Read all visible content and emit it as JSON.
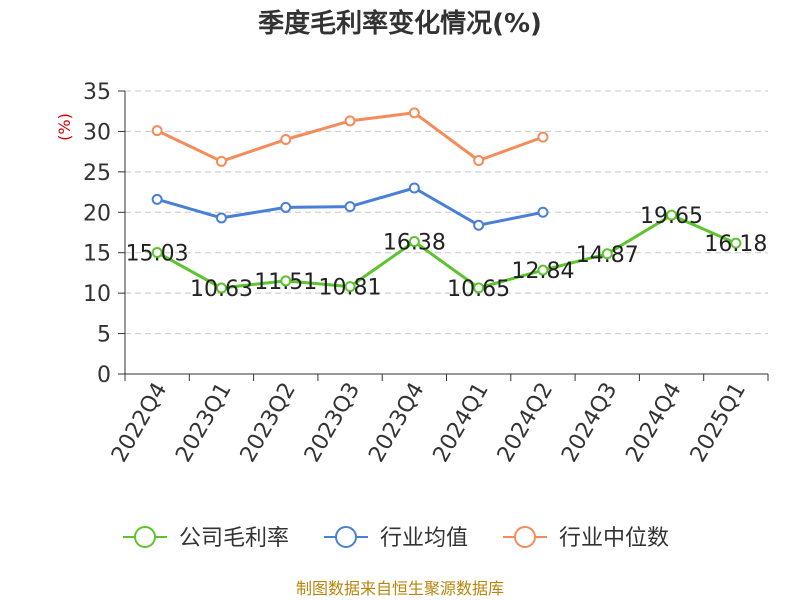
{
  "chart_data": {
    "type": "line",
    "title": "季度毛利率变化情况(%)",
    "ylabel": "(%)",
    "ylim": [
      0,
      35
    ],
    "yticks": [
      0,
      5,
      10,
      15,
      20,
      25,
      30,
      35
    ],
    "grid": true,
    "legend_position": "bottom",
    "categories": [
      "2022Q4",
      "2023Q1",
      "2023Q2",
      "2023Q3",
      "2023Q4",
      "2024Q1",
      "2024Q2",
      "2024Q3",
      "2024Q4",
      "2025Q1"
    ],
    "series": [
      {
        "name": "公司毛利率",
        "color": "#5cc42d",
        "values": [
          15.03,
          10.63,
          11.51,
          10.81,
          16.38,
          10.65,
          12.84,
          14.87,
          19.65,
          16.18
        ],
        "labels": [
          "15.03",
          "10.63",
          "11.51",
          "10.81",
          "16.38",
          "10.65",
          "12.84",
          "14.87",
          "19.65",
          "16.18"
        ]
      },
      {
        "name": "行业均值",
        "color": "#4a7fd8",
        "values": [
          21.6,
          19.3,
          20.6,
          20.7,
          23.0,
          18.4,
          20.0,
          null,
          null,
          null
        ]
      },
      {
        "name": "行业中位数",
        "color": "#f58b5a",
        "values": [
          30.1,
          26.3,
          29.0,
          31.3,
          32.3,
          26.4,
          29.3,
          null,
          null,
          null
        ]
      }
    ]
  },
  "footer": "制图数据来自恒生聚源数据库"
}
